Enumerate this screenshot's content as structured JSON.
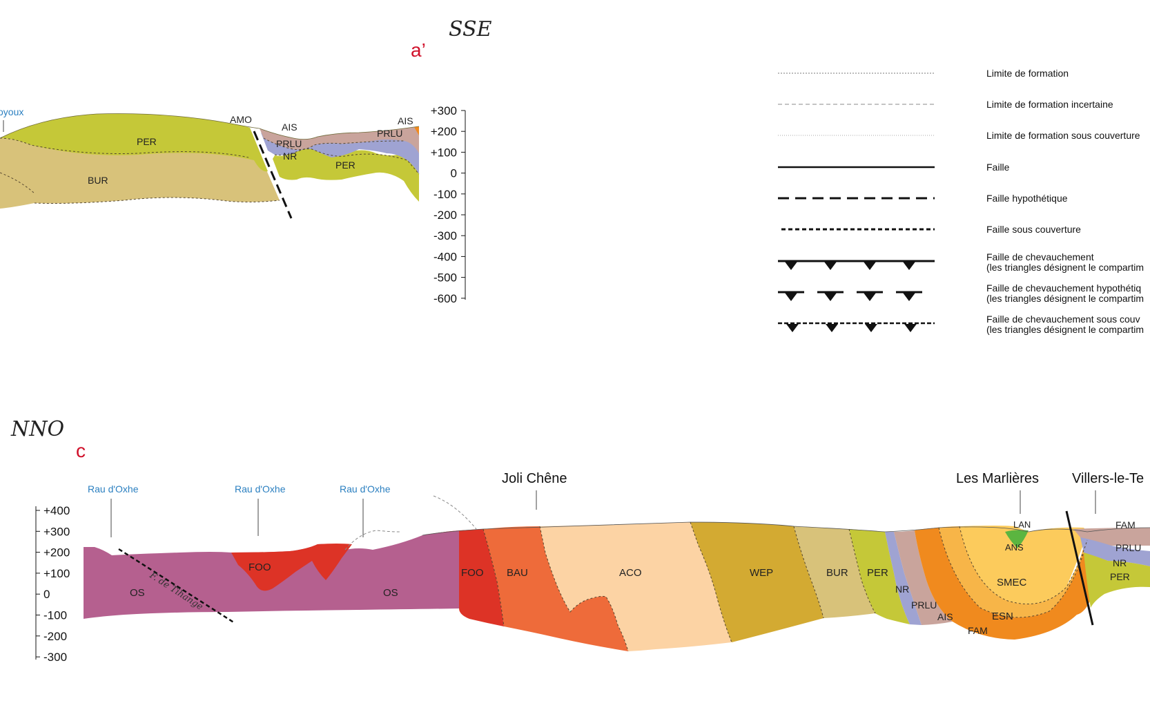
{
  "section_a": {
    "orientation": "SSE",
    "label": "a’",
    "stream_label": "oyoux",
    "axis_ticks": [
      "+300",
      "+200",
      "+100",
      "0",
      "-100",
      "-200",
      "-300",
      "-400",
      "-500",
      "-600"
    ],
    "units": {
      "per_left": "PER",
      "bur": "BUR",
      "amo": "AMO",
      "ais_1": "AIS",
      "prlu_1": "PRLU",
      "nr": "NR",
      "per_right": "PER",
      "ais_2": "AIS",
      "prlu_2": "PRLU"
    }
  },
  "legend": {
    "items": [
      {
        "label": "Limite de formation",
        "style": "dotted-fine",
        "color": "#777777"
      },
      {
        "label": "Limite de formation incertaine",
        "style": "dashed-fine",
        "color": "#888888"
      },
      {
        "label": "Limite de formation sous couverture",
        "style": "dotted-faint",
        "color": "#aaaaaa"
      },
      {
        "label": "Faille",
        "style": "solid",
        "color": "#111111"
      },
      {
        "label": "Faille hypothétique",
        "style": "long-dash",
        "color": "#111111"
      },
      {
        "label": "Faille sous couverture",
        "style": "short-dash",
        "color": "#111111"
      },
      {
        "label": "Faille de chevauchement",
        "label2": "(les triangles désignent le compartim",
        "style": "thrust-solid",
        "color": "#111111"
      },
      {
        "label": "Faille de chevauchement hypothétiq",
        "label2": "(les triangles désignent le compartim",
        "style": "thrust-dashed",
        "color": "#111111"
      },
      {
        "label": "Faille de chevauchement sous couv",
        "label2": "(les triangles désignent le compartim",
        "style": "thrust-covered",
        "color": "#111111"
      }
    ]
  },
  "section_c": {
    "orientation": "NNO",
    "label": "c",
    "axis_ticks": [
      "+400",
      "+300",
      "+200",
      "+100",
      "0",
      "-100",
      "-200",
      "-300"
    ],
    "places": [
      "Joli Chêne",
      "Les Marlières",
      "Villers-le-Te"
    ],
    "streams": [
      "Rau d'Oxhe",
      "Rau d'Oxhe",
      "Rau d'Oxhe"
    ],
    "fault_name": "F. de Tihange",
    "units": {
      "os_1": "OS",
      "foo_1": "FOO",
      "os_2": "OS",
      "foo_2": "FOO",
      "bau": "BAU",
      "aco": "ACO",
      "wep": "WEP",
      "bur": "BUR",
      "per": "PER",
      "nr": "NR",
      "prlu": "PRLU",
      "ais": "AIS",
      "fam": "FAM",
      "esn": "ESN",
      "smec": "SMEC",
      "ans": "ANS",
      "lan": "LAN",
      "fam_r": "FAM",
      "prlu_r": "PRLU",
      "nr_r": "NR",
      "per_r": "PER"
    }
  },
  "colors": {
    "PER": "#c5c838",
    "BUR": "#d8c27a",
    "BUR_dark": "#d3a83a",
    "AIS": "#c9a49c",
    "PRLU": "#9fa3d2",
    "NR": "#9fa3d2",
    "OS": "#b5608f",
    "FOO": "#dd3326",
    "BAU": "#ee6b3a",
    "ACO": "#fcd3a4",
    "WEP": "#d3aa32",
    "FAM": "#f08a1e",
    "ESN": "#f7b548",
    "SMEC": "#fccb5c",
    "ANS": "#5bb540",
    "LAN": "#aad46e"
  }
}
